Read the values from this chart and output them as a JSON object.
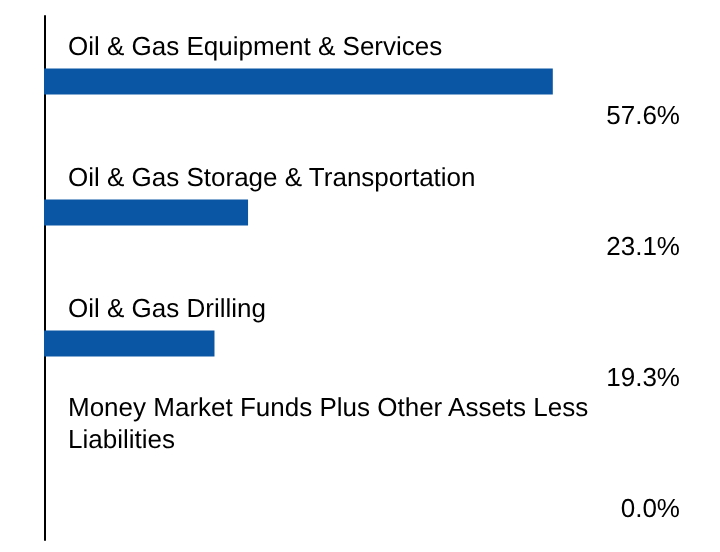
{
  "chart_data": {
    "type": "bar",
    "orientation": "horizontal",
    "categories": [
      "Oil & Gas Equipment & Services",
      "Oil & Gas Storage & Transportation",
      "Oil & Gas Drilling",
      "Money Market Funds Plus Other Assets Less Liabilities"
    ],
    "values": [
      57.6,
      23.1,
      19.3,
      0.0
    ],
    "value_labels": [
      "57.6%",
      "23.1%",
      "19.3%",
      "0.0%"
    ],
    "color": "#0a56a5"
  }
}
